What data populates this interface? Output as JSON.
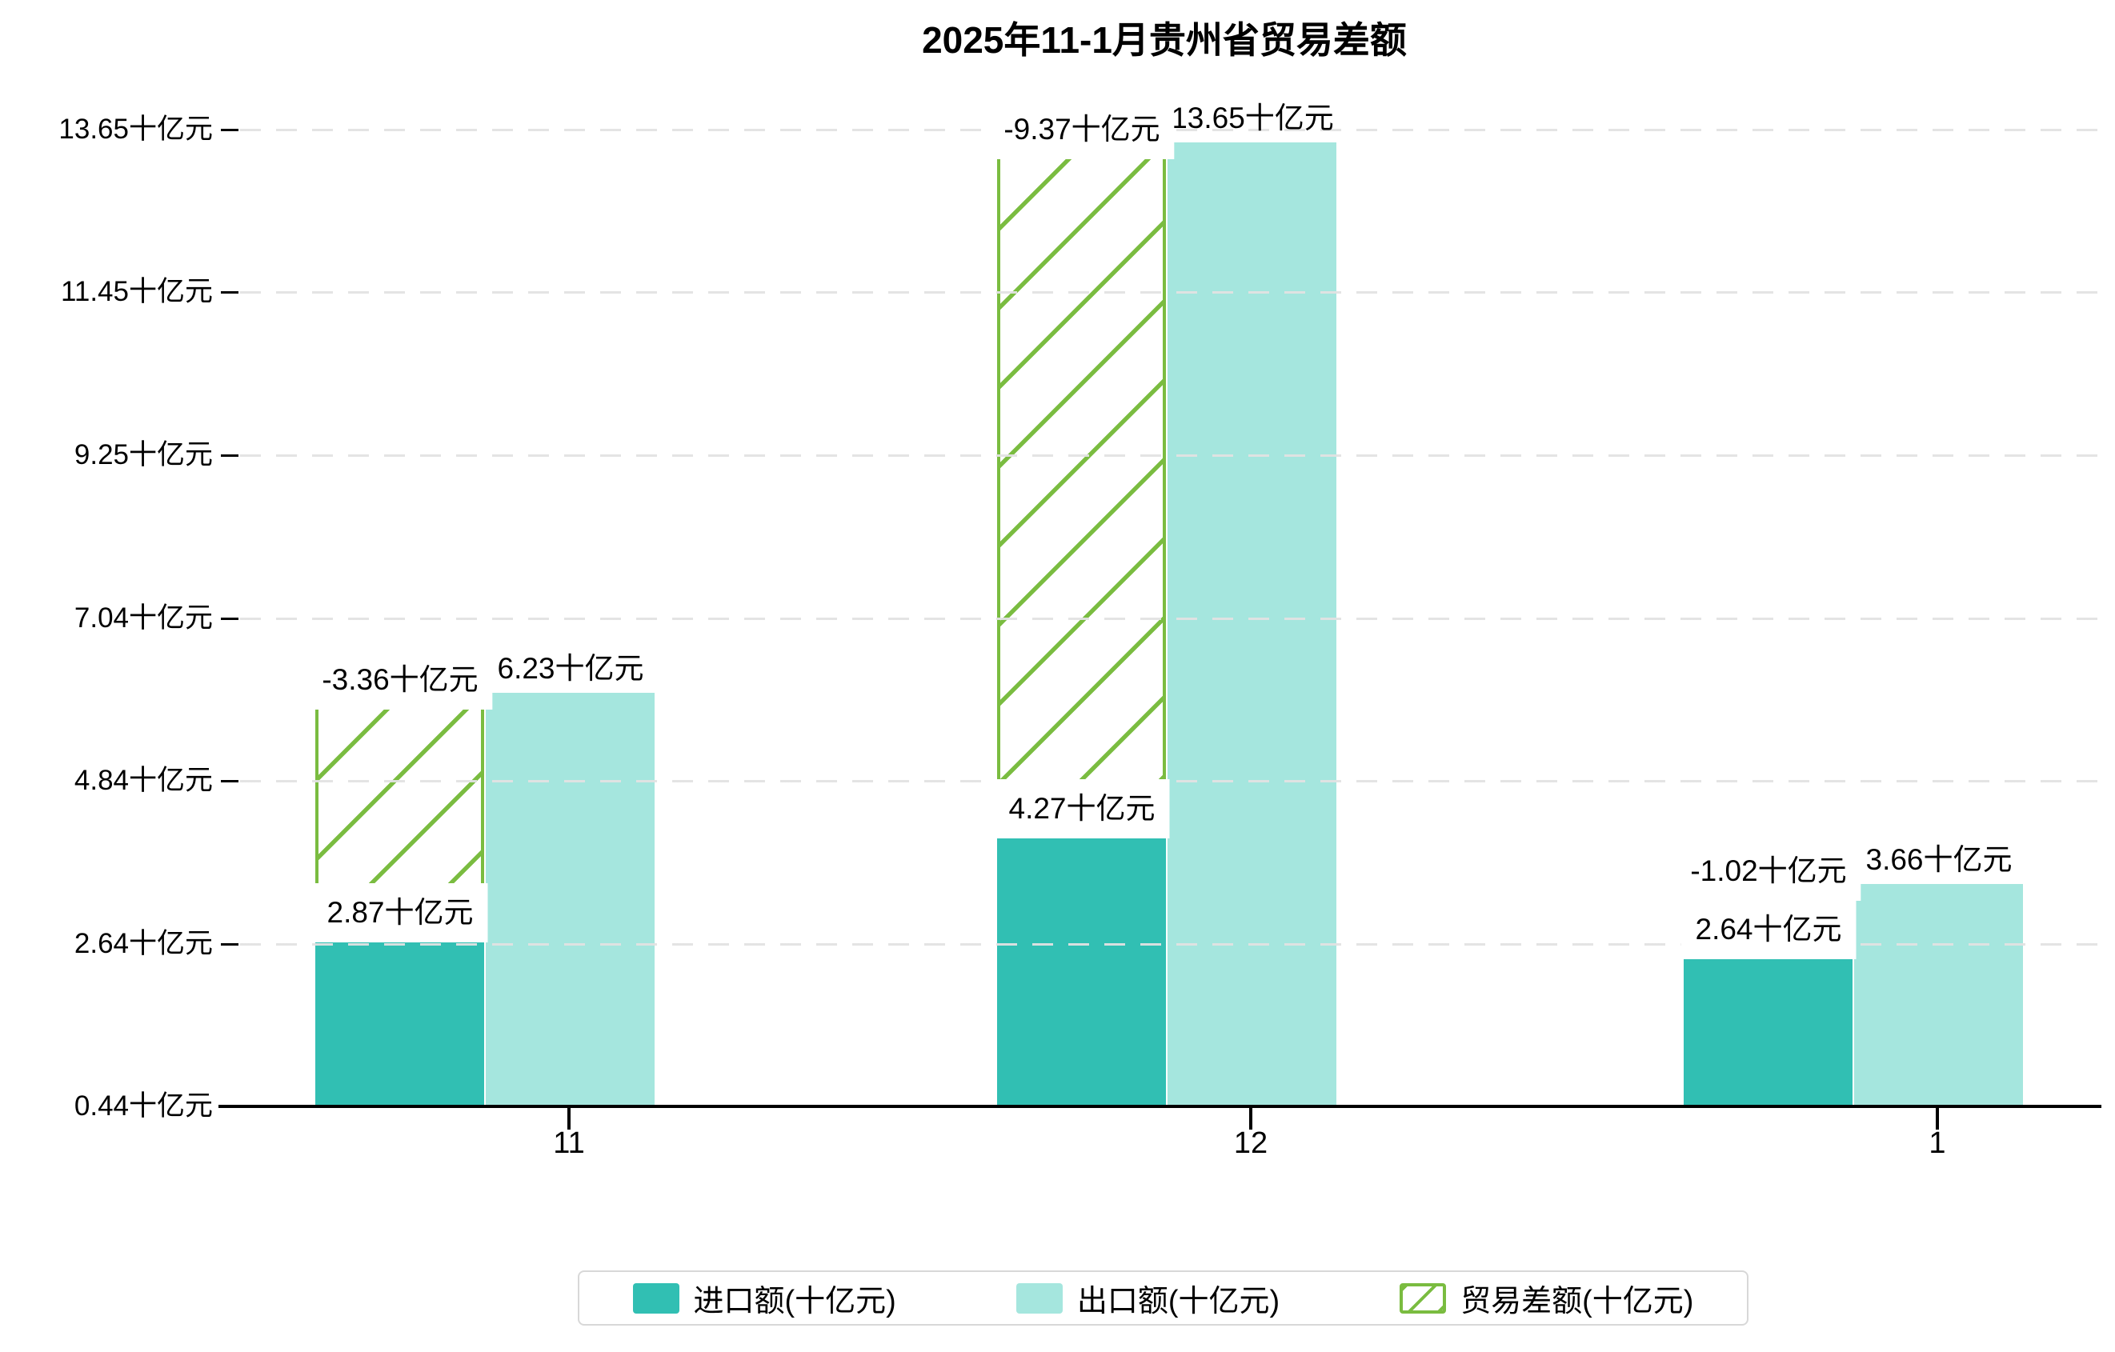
{
  "title": "2025年11-1月贵州省贸易差额",
  "chart_data": {
    "type": "bar",
    "categories": [
      "11",
      "12",
      "1"
    ],
    "series": [
      {
        "name": "进口额(十亿元)",
        "role": "import",
        "values": [
          2.87,
          4.27,
          2.64
        ],
        "labels": [
          "2.87十亿元",
          "4.27十亿元",
          "2.64十亿元"
        ],
        "color": "#31BFB3",
        "style": "solid"
      },
      {
        "name": "出口额(十亿元)",
        "role": "export",
        "values": [
          6.23,
          13.65,
          3.66
        ],
        "labels": [
          "6.23十亿元",
          "13.65十亿元",
          "3.66十亿元"
        ],
        "color": "#A5E6DE",
        "style": "solid"
      },
      {
        "name": "贸易差额(十亿元)",
        "role": "trade-balance",
        "values": [
          -3.36,
          -9.37,
          -1.02
        ],
        "labels": [
          "-3.36十亿元",
          "-9.37十亿元",
          "-1.02十亿元"
        ],
        "color": "#7ABC40",
        "style": "hatched",
        "note": "drawn stacked on top of import bar, height = |value|, reaching export level"
      }
    ],
    "y_axis": {
      "unit": "十亿元",
      "min": 0.44,
      "max": 13.65,
      "grid": "dashed",
      "ticks": [
        {
          "label": "13.65十亿元",
          "value": 13.65
        },
        {
          "label": "11.45十亿元",
          "value": 11.45
        },
        {
          "label": "9.25十亿元",
          "value": 9.25
        },
        {
          "label": "7.04十亿元",
          "value": 7.04
        },
        {
          "label": "4.84十亿元",
          "value": 4.84
        },
        {
          "label": "2.64十亿元",
          "value": 2.64
        },
        {
          "label": "0.44十亿元",
          "value": 0.44
        }
      ]
    },
    "legend_position": "bottom"
  },
  "colors": {
    "grid_line": "#E2E2E2",
    "axis_line": "#000000",
    "text": "#000000",
    "legend_border": "#D8D8D8",
    "background": "#FFFFFF"
  }
}
